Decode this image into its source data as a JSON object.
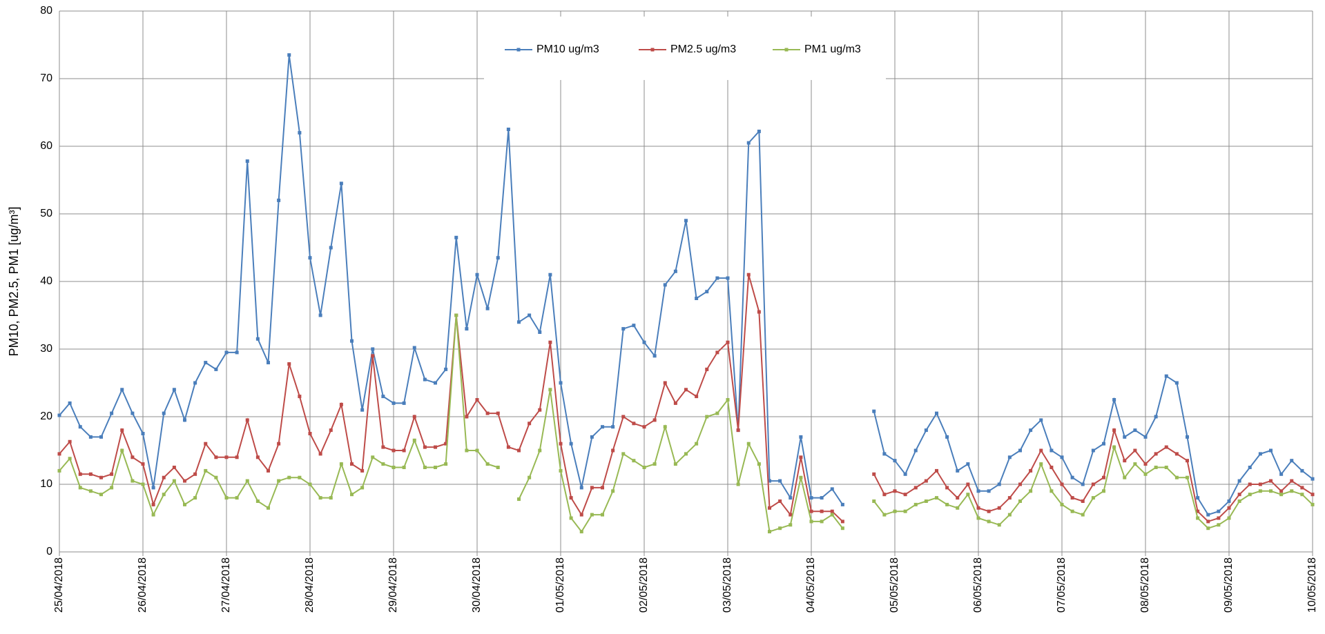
{
  "chart_data": {
    "type": "line",
    "y_label": "PM10, PM2.5, PM1 [ug/m³]",
    "categories": [
      "25/04/2018",
      null,
      null,
      null,
      null,
      null,
      null,
      null,
      "26/04/2018",
      null,
      null,
      null,
      null,
      null,
      null,
      null,
      "27/04/2018",
      null,
      null,
      null,
      null,
      null,
      null,
      null,
      "28/04/2018",
      null,
      null,
      null,
      null,
      null,
      null,
      null,
      "29/04/2018",
      null,
      null,
      null,
      null,
      null,
      null,
      null,
      "30/04/2018",
      null,
      null,
      null,
      null,
      null,
      null,
      null,
      "01/05/2018",
      null,
      null,
      null,
      null,
      null,
      null,
      null,
      "02/05/2018",
      null,
      null,
      null,
      null,
      null,
      null,
      null,
      "03/05/2018",
      null,
      null,
      null,
      null,
      null,
      null,
      null,
      "04/05/2018",
      null,
      null,
      null,
      null,
      null,
      null,
      null,
      "05/05/2018",
      null,
      null,
      null,
      null,
      null,
      null,
      null,
      "06/05/2018",
      null,
      null,
      null,
      null,
      null,
      null,
      null,
      "07/05/2018",
      null,
      null,
      null,
      null,
      null,
      null,
      null,
      "08/05/2018",
      null,
      null,
      null,
      null,
      null,
      null,
      null,
      "09/05/2018",
      null,
      null,
      null,
      null,
      null,
      null,
      null,
      "10/05/2018"
    ],
    "series": [
      {
        "name": "PM10 ug/m3",
        "color": "#4a7ebb",
        "values": [
          20.2,
          22,
          18.5,
          17,
          17,
          20.5,
          24,
          20.5,
          17.5,
          9.5,
          20.5,
          24,
          19.5,
          25,
          28,
          27,
          29.5,
          29.5,
          57.8,
          31.5,
          28,
          52,
          73.5,
          62,
          43.5,
          35,
          45,
          54.5,
          31.2,
          21,
          30,
          23,
          22,
          22,
          30.2,
          25.5,
          25,
          27,
          46.5,
          33,
          41,
          36,
          43.5,
          62.5,
          34,
          35,
          32.5,
          41,
          25,
          16,
          9.5,
          17,
          18.5,
          18.5,
          33,
          33.5,
          31,
          29,
          39.5,
          41.5,
          49,
          37.5,
          38.5,
          40.5,
          40.5,
          18,
          60.5,
          62.2,
          10.5,
          10.5,
          8,
          17,
          8,
          8,
          9.3,
          7,
          null,
          null,
          20.8,
          14.5,
          13.5,
          11.5,
          15,
          18,
          20.5,
          17,
          12,
          13,
          9,
          9,
          10,
          14,
          15,
          18,
          19.5,
          15,
          14,
          11,
          10,
          15,
          16,
          22.5,
          17,
          18,
          17,
          20,
          26,
          25,
          17,
          8,
          5.5,
          6,
          7.5,
          10.5,
          12.5,
          14.5,
          15,
          11.5,
          13.5,
          12,
          10.8
        ]
      },
      {
        "name": "PM2.5 ug/m3",
        "color": "#be4b48",
        "values": [
          14.5,
          16.3,
          11.5,
          11.5,
          11,
          11.5,
          18,
          14,
          13,
          7,
          11,
          12.5,
          10.5,
          11.5,
          16,
          14,
          14,
          14,
          19.5,
          14,
          12,
          16,
          27.8,
          23,
          17.5,
          14.5,
          18,
          21.8,
          13,
          12,
          29,
          15.5,
          15,
          15,
          20,
          15.5,
          15.5,
          16,
          35,
          20,
          22.5,
          20.5,
          20.5,
          15.5,
          15,
          19,
          21,
          31,
          16,
          8,
          5.5,
          9.5,
          9.5,
          15,
          20,
          19,
          18.5,
          19.5,
          25,
          22,
          24,
          23,
          27,
          29.5,
          31,
          18,
          41,
          35.5,
          6.5,
          7.5,
          5.5,
          14,
          6,
          6,
          6,
          4.5,
          null,
          null,
          11.5,
          8.5,
          9,
          8.5,
          9.5,
          10.5,
          12,
          9.5,
          8,
          10,
          6.5,
          6,
          6.5,
          8,
          10,
          12,
          15,
          12.5,
          10,
          8,
          7.5,
          10,
          11,
          18,
          13.5,
          15,
          13,
          14.5,
          15.5,
          14.5,
          13.5,
          6,
          4.5,
          5,
          6.5,
          8.5,
          10,
          10,
          10.5,
          9,
          10.5,
          9.5,
          8.5
        ]
      },
      {
        "name": "PM1 ug/m3",
        "color": "#98b954",
        "values": [
          12,
          13.8,
          9.5,
          9,
          8.5,
          9.5,
          15,
          10.5,
          10,
          5.5,
          8.5,
          10.5,
          7,
          8,
          12,
          11,
          8,
          8,
          10.5,
          7.5,
          6.5,
          10.5,
          11,
          11,
          10,
          8,
          8,
          13,
          8.5,
          9.5,
          14,
          13,
          12.5,
          12.5,
          16.5,
          12.5,
          12.5,
          13,
          35,
          15,
          15,
          13,
          12.5,
          null,
          7.8,
          11,
          15,
          24,
          12,
          5,
          3,
          5.5,
          5.5,
          9,
          14.5,
          13.5,
          12.5,
          13,
          18.5,
          13,
          14.5,
          16,
          20,
          20.5,
          22.5,
          10,
          16,
          13,
          3,
          3.5,
          4,
          11,
          4.5,
          4.5,
          5.5,
          3.5,
          null,
          null,
          7.5,
          5.5,
          6,
          6,
          7,
          7.5,
          8,
          7,
          6.5,
          8.5,
          5,
          4.5,
          4,
          5.5,
          7.5,
          9,
          13,
          9,
          7,
          6,
          5.5,
          8,
          9,
          15.5,
          11,
          13,
          11.5,
          12.5,
          12.5,
          11,
          11,
          5,
          3.5,
          4,
          5,
          7.5,
          8.5,
          9,
          9,
          8.5,
          9,
          8.5,
          7
        ]
      }
    ],
    "ylim": [
      0,
      80
    ],
    "yticks": [
      0,
      10,
      20,
      30,
      40,
      50,
      60,
      70,
      80
    ],
    "grid": true,
    "legend": "top"
  }
}
